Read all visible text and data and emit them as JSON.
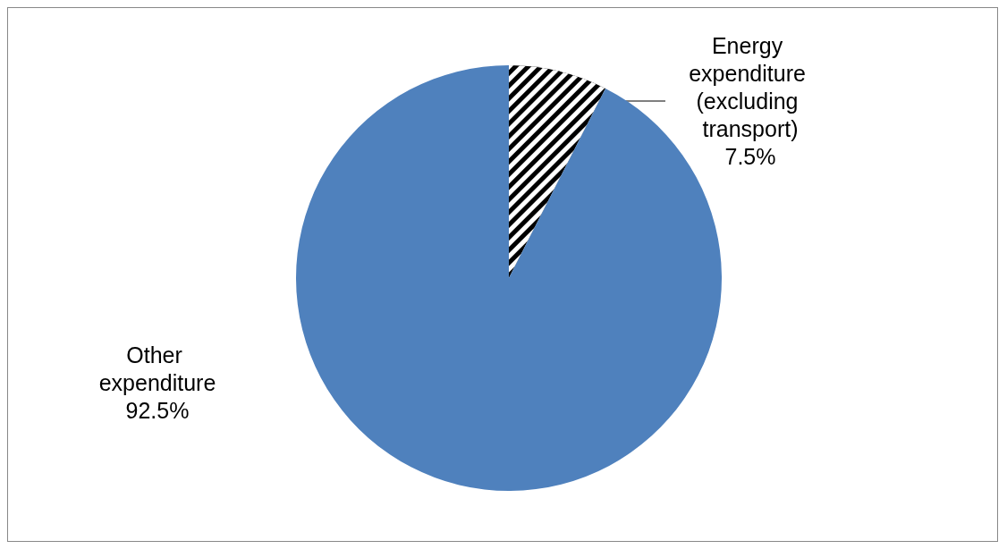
{
  "chart_data": {
    "type": "pie",
    "categories": [
      "Energy expenditure (excluding transport)",
      "Other expenditure"
    ],
    "values": [
      7.5,
      92.5
    ],
    "value_labels": [
      "7.5%",
      "92.5%"
    ],
    "colors": [
      "#000000",
      "#4f81bd"
    ]
  }
}
